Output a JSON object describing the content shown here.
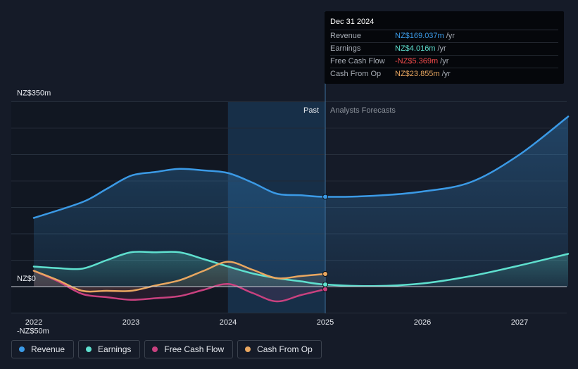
{
  "chart_data": {
    "type": "area",
    "x_range": [
      2021.8,
      2027.5
    ],
    "ylim": [
      -50,
      350
    ],
    "y_labels": [
      {
        "value": 350,
        "text": "NZ$350m"
      },
      {
        "value": 0,
        "text": "NZ$0"
      },
      {
        "value": -50,
        "text": "-NZ$50m"
      }
    ],
    "x_ticks": [
      {
        "value": 2022,
        "text": "2022"
      },
      {
        "value": 2023,
        "text": "2023"
      },
      {
        "value": 2024,
        "text": "2024"
      },
      {
        "value": 2025,
        "text": "2025"
      },
      {
        "value": 2026,
        "text": "2026"
      },
      {
        "value": 2027,
        "text": "2027"
      }
    ],
    "past_label": "Past",
    "forecast_label": "Analysts Forecasts",
    "divider_x": 2025,
    "highlight_start_x": 2024,
    "series": [
      {
        "name": "Revenue",
        "color": "#3b9ae6",
        "points": [
          [
            2022,
            130
          ],
          [
            2022.5,
            160
          ],
          [
            2022.75,
            185
          ],
          [
            2023,
            210
          ],
          [
            2023.25,
            217
          ],
          [
            2023.5,
            223
          ],
          [
            2023.75,
            220
          ],
          [
            2024,
            215
          ],
          [
            2024.25,
            197
          ],
          [
            2024.5,
            176
          ],
          [
            2024.75,
            173
          ],
          [
            2025,
            170
          ]
        ],
        "forecast": [
          [
            2025,
            170
          ],
          [
            2025.5,
            172
          ],
          [
            2026,
            180
          ],
          [
            2026.5,
            198
          ],
          [
            2027,
            250
          ],
          [
            2027.5,
            322
          ]
        ]
      },
      {
        "name": "Earnings",
        "color": "#5fe0cf",
        "points": [
          [
            2022,
            38
          ],
          [
            2022.25,
            35
          ],
          [
            2022.5,
            34
          ],
          [
            2022.75,
            50
          ],
          [
            2023,
            65
          ],
          [
            2023.25,
            65
          ],
          [
            2023.5,
            65
          ],
          [
            2023.75,
            52
          ],
          [
            2024,
            38
          ],
          [
            2024.25,
            25
          ],
          [
            2024.5,
            16
          ],
          [
            2024.75,
            10
          ],
          [
            2025,
            4
          ]
        ],
        "forecast": [
          [
            2025,
            4
          ],
          [
            2025.5,
            1
          ],
          [
            2026,
            6
          ],
          [
            2026.5,
            20
          ],
          [
            2027,
            40
          ],
          [
            2027.5,
            62
          ]
        ]
      },
      {
        "name": "Free Cash Flow",
        "color": "#c9417f",
        "points": [
          [
            2022,
            30
          ],
          [
            2022.25,
            10
          ],
          [
            2022.5,
            -14
          ],
          [
            2022.75,
            -20
          ],
          [
            2023,
            -25
          ],
          [
            2023.25,
            -22
          ],
          [
            2023.5,
            -18
          ],
          [
            2023.75,
            -6
          ],
          [
            2024,
            5
          ],
          [
            2024.25,
            -12
          ],
          [
            2024.5,
            -28
          ],
          [
            2024.75,
            -16
          ],
          [
            2025,
            -5
          ]
        ]
      },
      {
        "name": "Cash From Op",
        "color": "#e9a760",
        "points": [
          [
            2022,
            30
          ],
          [
            2022.25,
            12
          ],
          [
            2022.5,
            -8
          ],
          [
            2022.75,
            -8
          ],
          [
            2023,
            -8
          ],
          [
            2023.25,
            2
          ],
          [
            2023.5,
            12
          ],
          [
            2023.75,
            30
          ],
          [
            2024,
            47
          ],
          [
            2024.25,
            32
          ],
          [
            2024.5,
            16
          ],
          [
            2024.75,
            20
          ],
          [
            2025,
            24
          ]
        ]
      }
    ]
  },
  "tooltip": {
    "date": "Dec 31 2024",
    "rows": [
      {
        "label": "Revenue",
        "value": "NZ$169.037m",
        "unit": "/yr",
        "color": "#3b9ae6"
      },
      {
        "label": "Earnings",
        "value": "NZ$4.016m",
        "unit": "/yr",
        "color": "#5fe0cf"
      },
      {
        "label": "Free Cash Flow",
        "value": "-NZ$5.369m",
        "unit": "/yr",
        "color": "#f24b4b"
      },
      {
        "label": "Cash From Op",
        "value": "NZ$23.855m",
        "unit": "/yr",
        "color": "#e9a760"
      }
    ]
  },
  "legend": [
    {
      "label": "Revenue",
      "color": "#3b9ae6"
    },
    {
      "label": "Earnings",
      "color": "#5fe0cf"
    },
    {
      "label": "Free Cash Flow",
      "color": "#c9417f"
    },
    {
      "label": "Cash From Op",
      "color": "#e9a760"
    }
  ]
}
